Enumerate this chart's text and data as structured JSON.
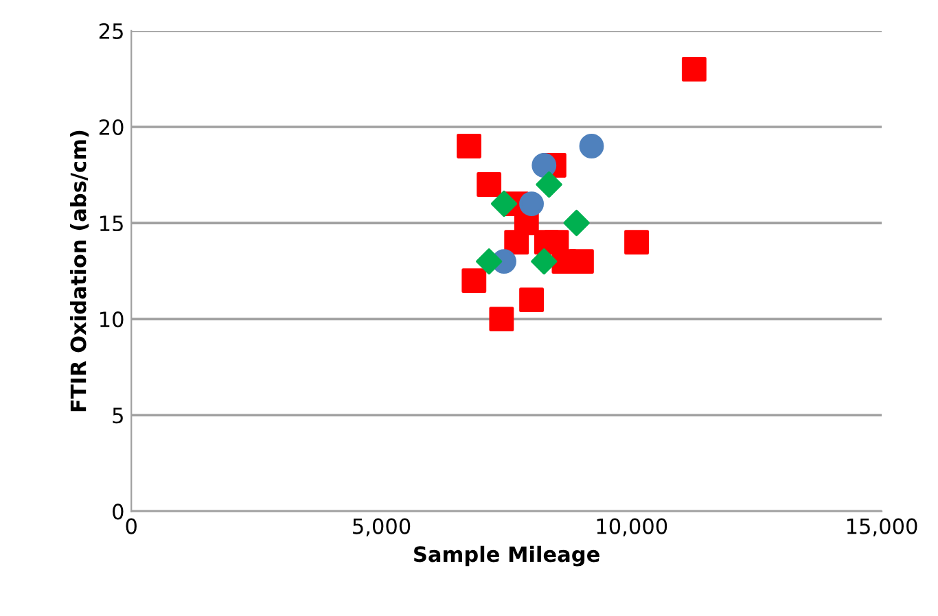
{
  "chart_data": {
    "type": "scatter",
    "xlabel": "Sample Mileage",
    "ylabel": "FTIR Oxidation (abs/cm)",
    "xlim": [
      0,
      15000
    ],
    "xticks": [
      {
        "value": 0,
        "label": "0"
      },
      {
        "value": 5000,
        "label": "5,000"
      },
      {
        "value": 10000,
        "label": "10,000"
      },
      {
        "value": 15000,
        "label": "15,000"
      }
    ],
    "ylim": [
      0,
      25
    ],
    "yticks": [
      0,
      5,
      10,
      15,
      20,
      25
    ],
    "grid": "y",
    "legend": false,
    "series": [
      {
        "color": "#ff0000",
        "marker": "square",
        "x": [
          7900,
          8500,
          6850,
          8000,
          7400,
          6750,
          7700,
          7700,
          8300,
          8650,
          9000,
          7150,
          8450,
          10100,
          11250
        ],
        "values": [
          15,
          14,
          12,
          11,
          10,
          19,
          16,
          14,
          14,
          13,
          13,
          17,
          18,
          14,
          23
        ]
      },
      {
        "color": "#4f81bd",
        "marker": "circle",
        "x": [
          9200,
          8250,
          8000,
          7450
        ],
        "values": [
          19,
          18,
          16,
          13
        ]
      },
      {
        "color": "#00b050",
        "marker": "diamond",
        "x": [
          8350,
          7450,
          8900,
          7150,
          8250
        ],
        "values": [
          17,
          16,
          15,
          13,
          13
        ]
      }
    ]
  }
}
